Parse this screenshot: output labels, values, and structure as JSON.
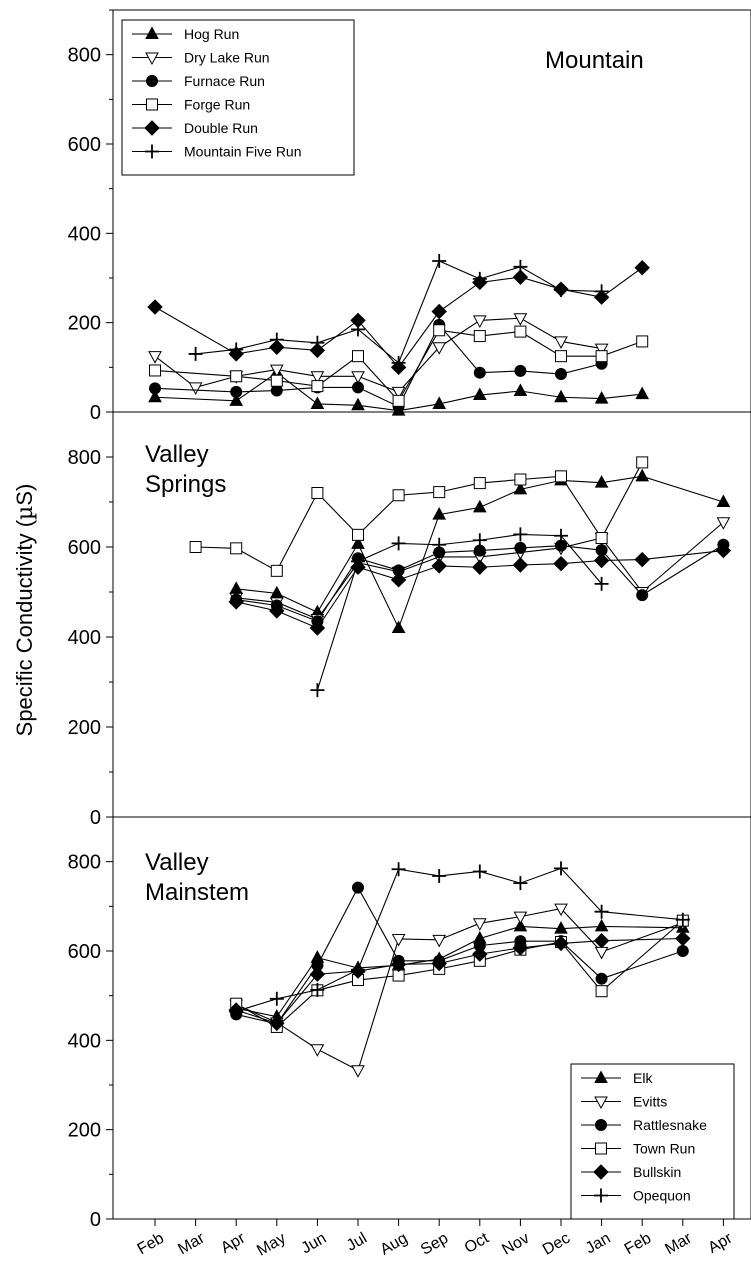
{
  "chart_data": {
    "type": "line",
    "ylabel_prefix": "Specific Conductivity (",
    "ylabel_mu": "µ",
    "ylabel_suffix": "S)",
    "x_ticks": [
      "Feb",
      "Mar",
      "Apr",
      "May",
      "Jun",
      "Jul",
      "Aug",
      "Sep",
      "Oct",
      "Nov",
      "Dec",
      "Jan",
      "Feb",
      "Mar",
      "Apr"
    ],
    "panels": [
      {
        "id": "mountain",
        "title_lines": [
          "Mountain"
        ],
        "ylim": [
          0,
          900
        ],
        "y_ticks": [
          0,
          200,
          400,
          600,
          800
        ],
        "legend_position": "top-left",
        "series": [
          {
            "name": "Hog Run",
            "marker": "triangle-up",
            "fill": "filled",
            "points": [
              [
                0,
                33
              ],
              [
                2,
                25
              ],
              [
                3,
                88
              ],
              [
                4,
                18
              ],
              [
                5,
                15
              ],
              [
                6,
                3
              ],
              [
                7,
                18
              ],
              [
                8,
                38
              ],
              [
                9,
                47
              ],
              [
                10,
                33
              ],
              [
                11,
                30
              ],
              [
                12,
                40
              ]
            ]
          },
          {
            "name": "Dry Lake Run",
            "marker": "triangle-down",
            "fill": "open",
            "points": [
              [
                0,
                125
              ],
              [
                1,
                55
              ],
              [
                2,
                80
              ],
              [
                3,
                95
              ],
              [
                4,
                80
              ],
              [
                5,
                80
              ],
              [
                6,
                45
              ],
              [
                7,
                145
              ],
              [
                8,
                205
              ],
              [
                9,
                210
              ],
              [
                10,
                158
              ],
              [
                11,
                142
              ]
            ]
          },
          {
            "name": "Furnace Run",
            "marker": "circle",
            "fill": "filled",
            "points": [
              [
                0,
                53
              ],
              [
                2,
                45
              ],
              [
                3,
                48
              ],
              [
                4,
                55
              ],
              [
                5,
                55
              ],
              [
                6,
                12
              ],
              [
                7,
                195
              ],
              [
                8,
                88
              ],
              [
                9,
                92
              ],
              [
                10,
                85
              ],
              [
                11,
                108
              ]
            ]
          },
          {
            "name": "Forge Run",
            "marker": "square",
            "fill": "open",
            "points": [
              [
                0,
                93
              ],
              [
                2,
                80
              ],
              [
                3,
                70
              ],
              [
                4,
                58
              ],
              [
                5,
                125
              ],
              [
                6,
                25
              ],
              [
                7,
                183
              ],
              [
                8,
                170
              ],
              [
                9,
                180
              ],
              [
                10,
                125
              ],
              [
                11,
                125
              ],
              [
                12,
                158
              ]
            ]
          },
          {
            "name": "Double Run",
            "marker": "diamond",
            "fill": "filled",
            "points": [
              [
                0,
                235
              ],
              [
                2,
                130
              ],
              [
                3,
                145
              ],
              [
                4,
                138
              ],
              [
                5,
                205
              ],
              [
                6,
                100
              ],
              [
                7,
                225
              ],
              [
                8,
                290
              ],
              [
                9,
                302
              ],
              [
                10,
                275
              ],
              [
                11,
                257
              ],
              [
                12,
                323
              ]
            ]
          },
          {
            "name": "Mountain Five Run",
            "marker": "plus",
            "fill": "none",
            "points": [
              [
                1,
                130
              ],
              [
                2,
                140
              ],
              [
                3,
                162
              ],
              [
                4,
                155
              ],
              [
                5,
                185
              ],
              [
                6,
                110
              ],
              [
                7,
                338
              ],
              [
                8,
                298
              ],
              [
                9,
                325
              ],
              [
                10,
                273
              ],
              [
                11,
                270
              ]
            ]
          }
        ]
      },
      {
        "id": "springs",
        "title_lines": [
          "Valley",
          "Springs"
        ],
        "ylim": [
          0,
          900
        ],
        "y_ticks": [
          0,
          200,
          400,
          600,
          800
        ],
        "legend_position": "none",
        "series": [
          {
            "name": "Elk",
            "marker": "triangle-up",
            "fill": "filled",
            "points": [
              [
                2,
                507
              ],
              [
                3,
                497
              ],
              [
                4,
                455
              ],
              [
                5,
                607
              ],
              [
                6,
                420
              ],
              [
                7,
                672
              ],
              [
                8,
                688
              ],
              [
                9,
                728
              ],
              [
                10,
                748
              ],
              [
                11,
                743
              ],
              [
                12,
                757
              ],
              [
                14,
                700
              ]
            ]
          },
          {
            "name": "Evitts",
            "marker": "triangle-down",
            "fill": "open",
            "points": [
              [
                2,
                487
              ],
              [
                3,
                477
              ],
              [
                4,
                440
              ],
              [
                5,
                565
              ],
              [
                6,
                545
              ],
              [
                7,
                578
              ],
              [
                8,
                578
              ],
              [
                9,
                588
              ],
              [
                10,
                598
              ],
              [
                11,
                620
              ],
              [
                12,
                500
              ],
              [
                14,
                655
              ]
            ]
          },
          {
            "name": "Rattlesnake",
            "marker": "circle",
            "fill": "filled",
            "points": [
              [
                2,
                483
              ],
              [
                3,
                470
              ],
              [
                4,
                435
              ],
              [
                5,
                575
              ],
              [
                6,
                548
              ],
              [
                7,
                588
              ],
              [
                8,
                592
              ],
              [
                9,
                598
              ],
              [
                10,
                603
              ],
              [
                11,
                593
              ],
              [
                12,
                493
              ],
              [
                14,
                605
              ]
            ]
          },
          {
            "name": "Town Run",
            "marker": "square",
            "fill": "open",
            "points": [
              [
                1,
                600
              ],
              [
                2,
                597
              ],
              [
                3,
                547
              ],
              [
                4,
                720
              ],
              [
                5,
                627
              ],
              [
                6,
                715
              ],
              [
                7,
                722
              ],
              [
                8,
                742
              ],
              [
                9,
                750
              ],
              [
                10,
                757
              ],
              [
                11,
                620
              ],
              [
                12,
                788
              ]
            ]
          },
          {
            "name": "Bullskin",
            "marker": "diamond",
            "fill": "filled",
            "points": [
              [
                2,
                478
              ],
              [
                3,
                458
              ],
              [
                4,
                420
              ],
              [
                5,
                555
              ],
              [
                6,
                527
              ],
              [
                7,
                558
              ],
              [
                8,
                555
              ],
              [
                9,
                560
              ],
              [
                10,
                563
              ],
              [
                11,
                570
              ],
              [
                12,
                572
              ],
              [
                14,
                592
              ]
            ]
          },
          {
            "name": "Opequon",
            "marker": "plus",
            "fill": "none",
            "points": [
              [
                4,
                282
              ],
              [
                5,
                568
              ],
              [
                6,
                608
              ],
              [
                7,
                605
              ],
              [
                8,
                615
              ],
              [
                9,
                628
              ],
              [
                10,
                625
              ],
              [
                11,
                518
              ]
            ]
          }
        ]
      },
      {
        "id": "mainstem",
        "title_lines": [
          "Valley",
          "Mainstem"
        ],
        "ylim": [
          0,
          900
        ],
        "y_ticks": [
          0,
          200,
          400,
          600,
          800
        ],
        "legend_position": "bottom-right",
        "series": [
          {
            "name": "Elk",
            "marker": "triangle-up",
            "fill": "filled",
            "points": [
              [
                2,
                472
              ],
              [
                3,
                453
              ],
              [
                4,
                585
              ],
              [
                5,
                562
              ],
              [
                6,
                568
              ],
              [
                7,
                582
              ],
              [
                8,
                628
              ],
              [
                9,
                655
              ],
              [
                10,
                650
              ],
              [
                11,
                655
              ],
              [
                13,
                652
              ]
            ]
          },
          {
            "name": "Evitts",
            "marker": "triangle-down",
            "fill": "open",
            "points": [
              [
                2,
                480
              ],
              [
                3,
                440
              ],
              [
                4,
                380
              ],
              [
                5,
                333
              ],
              [
                6,
                627
              ],
              [
                7,
                625
              ],
              [
                8,
                662
              ],
              [
                9,
                677
              ],
              [
                10,
                695
              ],
              [
                11,
                598
              ],
              [
                13,
                663
              ]
            ]
          },
          {
            "name": "Rattlesnake",
            "marker": "circle",
            "fill": "filled",
            "points": [
              [
                2,
                458
              ],
              [
                3,
                437
              ],
              [
                4,
                568
              ],
              [
                5,
                742
              ],
              [
                6,
                578
              ],
              [
                7,
                578
              ],
              [
                8,
                612
              ],
              [
                9,
                622
              ],
              [
                10,
                622
              ],
              [
                11,
                538
              ],
              [
                13,
                600
              ]
            ]
          },
          {
            "name": "Town Run",
            "marker": "square",
            "fill": "open",
            "points": [
              [
                2,
                482
              ],
              [
                3,
                430
              ],
              [
                4,
                512
              ],
              [
                5,
                535
              ],
              [
                6,
                545
              ],
              [
                7,
                560
              ],
              [
                8,
                578
              ],
              [
                9,
                603
              ],
              [
                10,
                620
              ],
              [
                11,
                510
              ],
              [
                13,
                668
              ]
            ]
          },
          {
            "name": "Bullskin",
            "marker": "diamond",
            "fill": "filled",
            "points": [
              [
                2,
                468
              ],
              [
                3,
                438
              ],
              [
                4,
                548
              ],
              [
                5,
                555
              ],
              [
                6,
                570
              ],
              [
                7,
                572
              ],
              [
                8,
                593
              ],
              [
                9,
                607
              ],
              [
                10,
                617
              ],
              [
                11,
                623
              ],
              [
                13,
                628
              ]
            ]
          },
          {
            "name": "Opequon",
            "marker": "plus",
            "fill": "none",
            "points": [
              [
                2,
                465
              ],
              [
                3,
                493
              ],
              [
                4,
                513
              ],
              [
                5,
                558
              ],
              [
                6,
                783
              ],
              [
                7,
                768
              ],
              [
                8,
                778
              ],
              [
                9,
                752
              ],
              [
                10,
                785
              ],
              [
                11,
                688
              ],
              [
                13,
                670
              ]
            ]
          }
        ]
      }
    ]
  }
}
